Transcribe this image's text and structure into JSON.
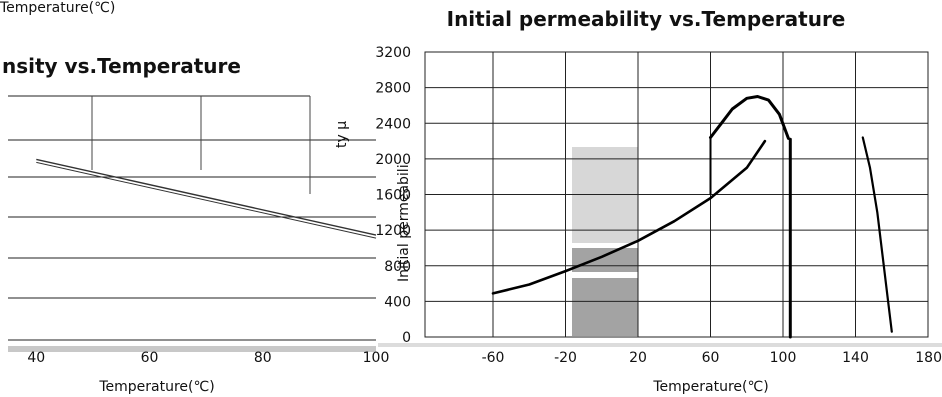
{
  "chart_data": [
    {
      "type": "line",
      "title": "nsity vs.Temperature",
      "top_text": "Temperature(℃)",
      "xlabel": "Temperature(℃)",
      "ylabel": "",
      "x_tick_labels": [
        "40",
        "60",
        "80",
        "100"
      ],
      "xlim": [
        35,
        100
      ],
      "ylim": [
        0,
        1
      ],
      "grid": true,
      "series": [
        {
          "x": [
            40,
            100
          ],
          "y": [
            0.74,
            0.43
          ]
        }
      ]
    },
    {
      "type": "line",
      "title": "Initial permeability vs.Temperature",
      "xlabel": "Temperature(℃)",
      "ylabel": "Initial permeabili",
      "ylabel_back": "ty μ",
      "x_tick_labels": [
        "-60",
        "-20",
        "20",
        "60",
        "100",
        "140",
        "180"
      ],
      "y_tick_labels": [
        "0",
        "400",
        "800",
        "1200",
        "1600",
        "2000",
        "2400",
        "2800",
        "3200"
      ],
      "xlim": [
        -60,
        180
      ],
      "ylim": [
        0,
        3200
      ],
      "grid": true,
      "series": [
        {
          "x": [
            -60,
            -40,
            -20,
            0,
            20,
            40,
            60,
            80,
            90
          ],
          "y": [
            490,
            590,
            740,
            900,
            1080,
            1300,
            1560,
            1900,
            2200
          ]
        },
        {
          "x": [
            60,
            66,
            72,
            80,
            86,
            92,
            98,
            103
          ],
          "y": [
            2240,
            2400,
            2560,
            2680,
            2700,
            2660,
            2500,
            2230
          ]
        },
        {
          "x": [
            104,
            104
          ],
          "y": [
            2220,
            0
          ]
        },
        {
          "x": [
            144,
            148,
            152,
            155,
            158,
            160
          ],
          "y": [
            2240,
            1900,
            1400,
            900,
            400,
            60
          ]
        }
      ]
    }
  ]
}
